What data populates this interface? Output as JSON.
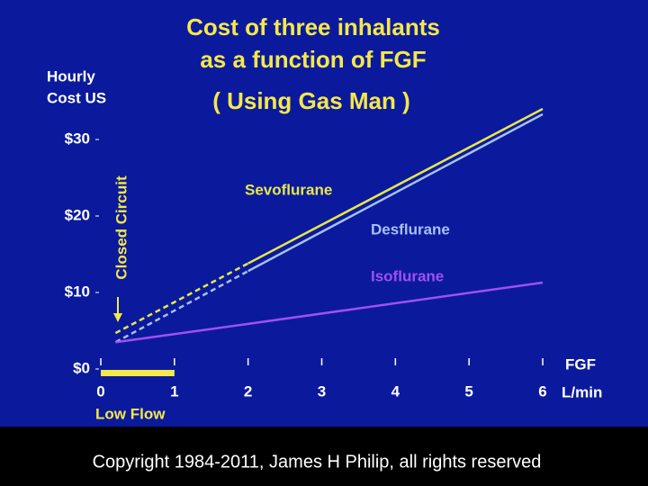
{
  "chart_data": {
    "type": "line",
    "title": [
      "Cost of three inhalants",
      "as a function of FGF"
    ],
    "subtitle": "( Using Gas Man )",
    "y_label": [
      "Hourly",
      "Cost US"
    ],
    "x_label": [
      "FGF",
      "L/min"
    ],
    "annotations": {
      "closed_circuit": "Closed Circuit",
      "low_flow": "Low Flow"
    },
    "low_flow_range": [
      0,
      1
    ],
    "x": [
      0.2,
      2,
      6
    ],
    "series": [
      {
        "name": "Sevoflurane",
        "color": "#e8e84a",
        "values": [
          4.7,
          13.8,
          34
        ],
        "dashed_first_segment": true
      },
      {
        "name": "Desflurane",
        "color": "#a8c0f0",
        "values": [
          3.5,
          12.8,
          33.3
        ],
        "dashed_first_segment": true
      },
      {
        "name": "Isoflurane",
        "color": "#a050f0",
        "values": [
          3.5,
          5.9,
          11.3
        ],
        "dashed_first_segment": false
      }
    ],
    "xlim": [
      0,
      6
    ],
    "xticks": [
      0,
      1,
      2,
      3,
      4,
      5,
      6
    ],
    "ylim": [
      0,
      30
    ],
    "yticks": [
      {
        "value": 0,
        "label": "$0"
      },
      {
        "value": 10,
        "label": "$10"
      },
      {
        "value": 20,
        "label": "$20"
      },
      {
        "value": 30,
        "label": "$30"
      }
    ],
    "grid": false,
    "footer": "Copyright 1984-2011, James H Philip, all rights reserved"
  }
}
